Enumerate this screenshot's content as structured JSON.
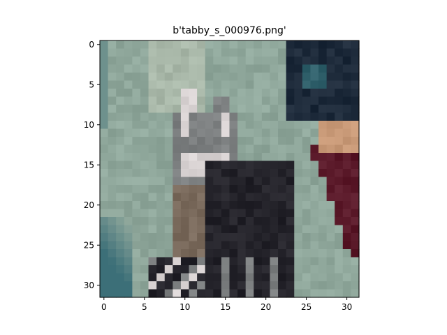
{
  "chart_data": {
    "type": "heatmap",
    "title": "b'tabby_s_000976.png'",
    "xlabel": "",
    "ylabel": "",
    "xlim": [
      -0.5,
      31.5
    ],
    "ylim": [
      31.5,
      -0.5
    ],
    "xticks": [
      0,
      5,
      10,
      15,
      20,
      25,
      30
    ],
    "yticks": [
      0,
      5,
      10,
      15,
      20,
      25,
      30
    ],
    "grid": false,
    "image": {
      "width": 32,
      "height": 32,
      "description_of_content": "",
      "palette": {
        "bg_green": "#8fa79b",
        "bg_green_light": "#a9b8a9",
        "bg_teal_dark": "#3c6f78",
        "cat_white": "#d9d3d3",
        "cat_grey": "#7c7f80",
        "cat_dark": "#24232a",
        "cat_brown": "#7a6a5c",
        "navy": "#1d2a3a",
        "skin": "#c99a78",
        "maroon": "#5b1a2a",
        "teal_accent": "#2f5f6a"
      }
    }
  }
}
